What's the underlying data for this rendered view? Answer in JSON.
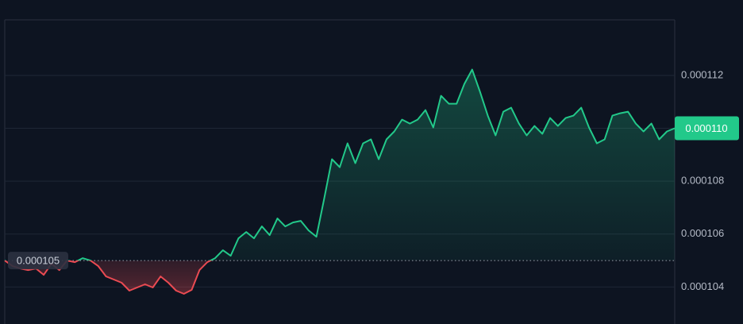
{
  "chart_data": {
    "type": "line",
    "values": [
      0.000105,
      0.00010479,
      0.0001047,
      0.00010464,
      0.0001047,
      0.00010446,
      0.00010488,
      0.00010464,
      0.000105,
      0.00010494,
      0.00010509,
      0.000105,
      0.00010479,
      0.0001044,
      0.00010428,
      0.00010416,
      0.00010386,
      0.00010398,
      0.0001041,
      0.00010398,
      0.0001044,
      0.00010416,
      0.00010386,
      0.00010374,
      0.00010389,
      0.00010464,
      0.00010494,
      0.00010509,
      0.00010539,
      0.00010518,
      0.00010584,
      0.00010608,
      0.00010584,
      0.00010629,
      0.00010596,
      0.00010659,
      0.00010629,
      0.00010644,
      0.0001065,
      0.00010614,
      0.0001059,
      0.00010734,
      0.00010883,
      0.00010853,
      0.00010943,
      0.00010868,
      0.00010943,
      0.00010958,
      0.00010883,
      0.00010958,
      0.00010988,
      0.00011033,
      0.00011018,
      0.00011033,
      0.00011069,
      0.00011003,
      0.00011123,
      0.00011093,
      0.00011093,
      0.00011168,
      0.00011222,
      0.00011138,
      0.00011048,
      0.00010973,
      0.00011063,
      0.00011078,
      0.00011018,
      0.00010973,
      0.00011009,
      0.00010979,
      0.00011039,
      0.00011009,
      0.00011039,
      0.00011048,
      0.00011078,
      0.00011003,
      0.00010943,
      0.00010958,
      0.00011048,
      0.00011057,
      0.00011063,
      0.00011018,
      0.00010988,
      0.00011018,
      0.00010958,
      0.00010988,
      0.00011
    ],
    "ylim": [
      0.0001026,
      0.0001141
    ],
    "yticks": [
      0.000104,
      0.000106,
      0.000108,
      {
        "value": 0.00011,
        "label": "0.000110"
      },
      0.000112
    ],
    "baseline": 0.000105,
    "last_price": {
      "value": 0.00011,
      "label": "0.000110"
    },
    "up_color": "#22c98a",
    "down_color": "#ea4a52",
    "grid": true
  }
}
